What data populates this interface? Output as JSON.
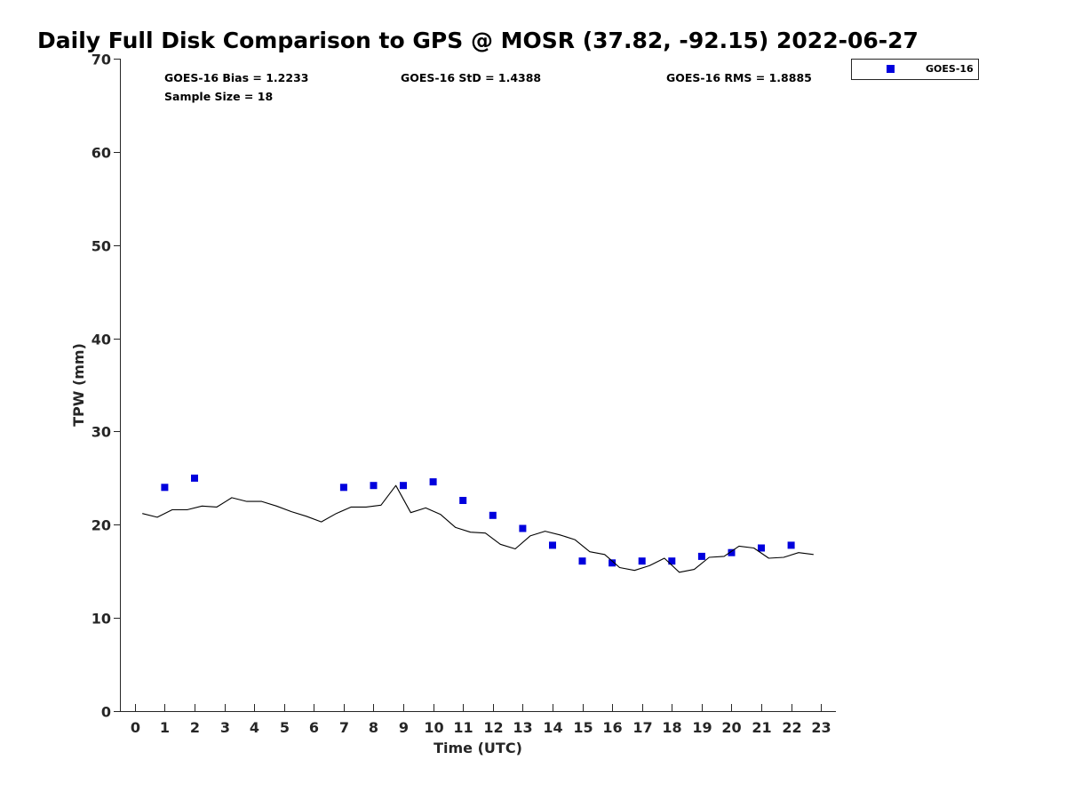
{
  "chart_data": {
    "type": "scatter",
    "title": "Daily Full Disk Comparison to GPS @ MOSR (37.82, -92.15) 2022-06-27",
    "xlabel": "Time (UTC)",
    "ylabel": "TPW (mm)",
    "xlim": [
      -0.5,
      23.5
    ],
    "ylim": [
      0,
      70
    ],
    "xticks": [
      0,
      1,
      2,
      3,
      4,
      5,
      6,
      7,
      8,
      9,
      10,
      11,
      12,
      13,
      14,
      15,
      16,
      17,
      18,
      19,
      20,
      21,
      22,
      23
    ],
    "yticks": [
      0,
      10,
      20,
      30,
      40,
      50,
      60,
      70
    ],
    "grid": false,
    "legend_position": "top-right",
    "stats": {
      "bias": "GOES-16 Bias = 1.2233",
      "std": "GOES-16 StD = 1.4388",
      "rms": "GOES-16 RMS = 1.8885",
      "sample": "Sample Size = 18"
    },
    "series": [
      {
        "name": "GOES-16",
        "kind": "scatter",
        "color": "#0000dd",
        "x": [
          1,
          2,
          7,
          8,
          9,
          10,
          11,
          12,
          13,
          14,
          15,
          16,
          17,
          18,
          19,
          20,
          21,
          22
        ],
        "y": [
          24.0,
          25.0,
          24.0,
          24.2,
          24.2,
          24.6,
          22.6,
          21.0,
          19.6,
          17.8,
          16.1,
          15.9,
          16.1,
          16.1,
          16.6,
          17.0,
          17.5,
          17.8
        ]
      },
      {
        "kind": "line",
        "color": "#000000",
        "x": [
          0.25,
          0.75,
          1.25,
          1.75,
          2.25,
          2.75,
          3.25,
          3.75,
          4.25,
          4.75,
          5.25,
          5.75,
          6.25,
          6.75,
          7.25,
          7.75,
          8.25,
          8.75,
          9.25,
          9.75,
          10.25,
          10.75,
          11.25,
          11.75,
          12.25,
          12.75,
          13.25,
          13.75,
          14.25,
          14.75,
          15.25,
          15.75,
          16.25,
          16.75,
          17.25,
          17.75,
          18.25,
          18.75,
          19.25,
          19.75,
          20.25,
          20.75,
          21.25,
          21.75,
          22.25,
          22.75
        ],
        "y": [
          21.2,
          20.8,
          21.6,
          21.6,
          22.0,
          21.9,
          22.9,
          22.5,
          22.5,
          22.0,
          21.4,
          20.9,
          20.3,
          21.2,
          21.9,
          21.9,
          22.1,
          24.2,
          21.3,
          21.8,
          21.1,
          19.7,
          19.2,
          19.1,
          17.9,
          17.4,
          18.8,
          19.3,
          18.9,
          18.4,
          17.1,
          16.8,
          15.4,
          15.1,
          15.6,
          16.4,
          14.9,
          15.2,
          16.5,
          16.6,
          17.7,
          17.5,
          16.4,
          16.5,
          17.0,
          16.8
        ]
      }
    ]
  }
}
